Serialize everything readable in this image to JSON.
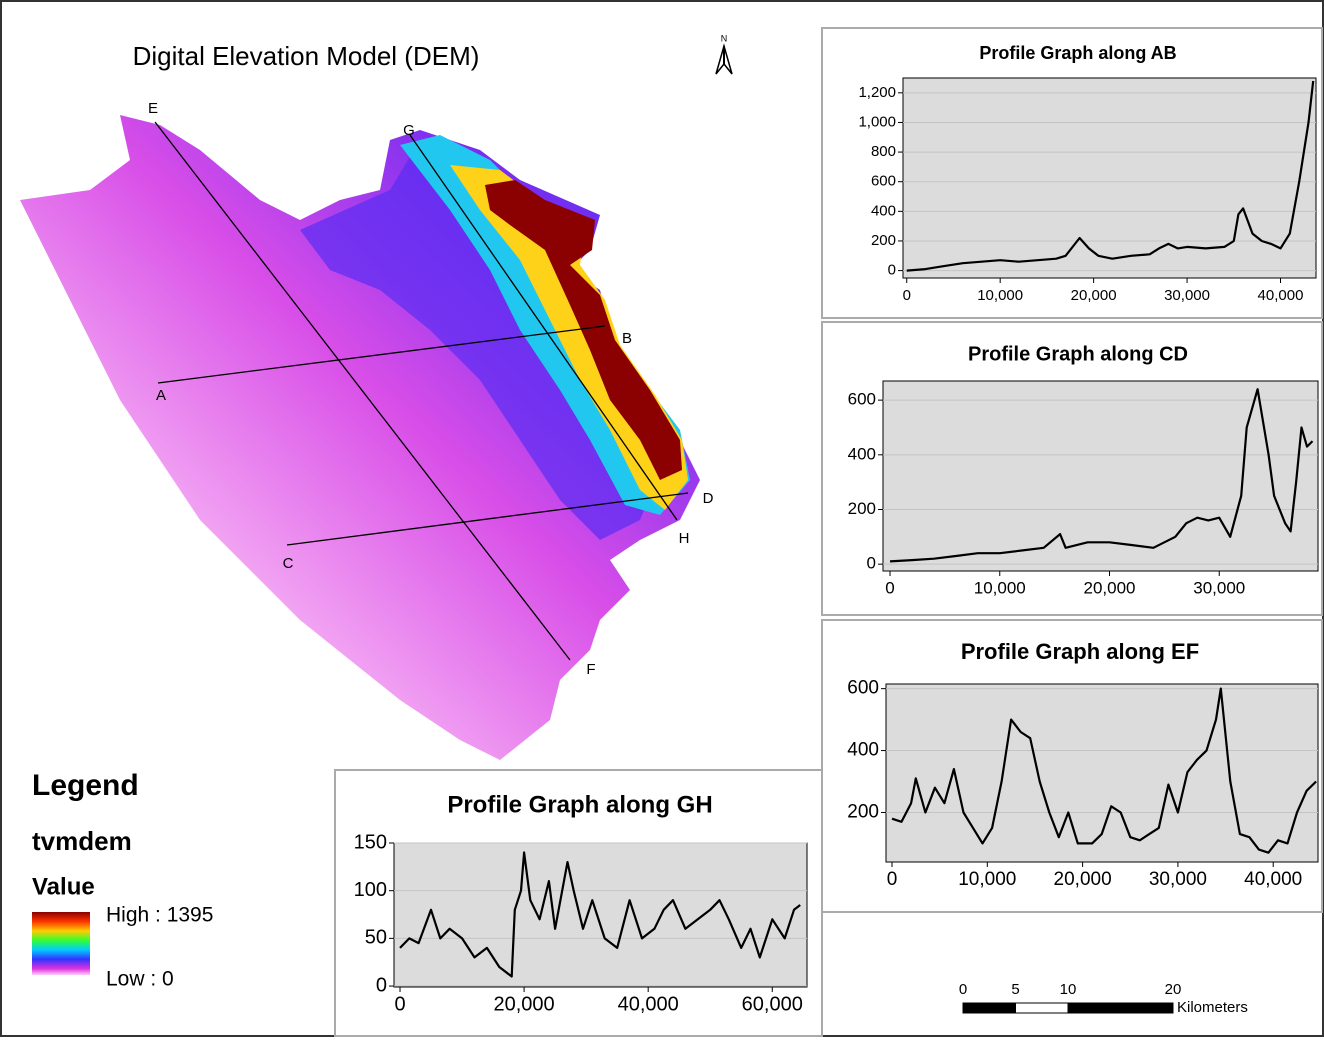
{
  "map": {
    "title": "Digital Elevation Model (DEM)",
    "north_label": "N",
    "points": [
      "A",
      "B",
      "C",
      "D",
      "E",
      "F",
      "G",
      "H"
    ]
  },
  "legend": {
    "title": "Legend",
    "layer": "tvmdem",
    "field": "Value",
    "high_label": "High : 1395",
    "low_label": "Low : 0"
  },
  "scale_bar": {
    "ticks": [
      0,
      5,
      10,
      20
    ],
    "unit": "Kilometers"
  },
  "chart_data": [
    {
      "type": "line",
      "title": "Profile Graph along AB",
      "color": "#000000",
      "plot_background": "#dcdcdc",
      "grid": true,
      "x": [
        0,
        2000,
        4000,
        6000,
        8000,
        10000,
        12000,
        14000,
        16000,
        17000,
        18500,
        19500,
        20500,
        22000,
        24000,
        26000,
        27000,
        28000,
        29000,
        30000,
        32000,
        34000,
        35000,
        35500,
        36000,
        37000,
        38000,
        39000,
        40000,
        41000,
        42000,
        43000,
        43500
      ],
      "values": [
        0,
        10,
        30,
        50,
        60,
        70,
        60,
        70,
        80,
        100,
        220,
        150,
        100,
        80,
        100,
        110,
        150,
        180,
        150,
        160,
        150,
        160,
        200,
        380,
        420,
        250,
        200,
        180,
        150,
        250,
        600,
        1000,
        1280
      ],
      "xlim": [
        -400,
        43800
      ],
      "ylim": [
        -50,
        1300
      ],
      "xticks": [
        0,
        {
          "value": 10000,
          "label": "10,000"
        },
        {
          "value": 20000,
          "label": "20,000"
        },
        {
          "value": 30000,
          "label": "30,000"
        },
        {
          "value": 40000,
          "label": "40,000"
        }
      ],
      "yticks": [
        0,
        200,
        400,
        600,
        800,
        {
          "value": 1000,
          "label": "1,000"
        },
        {
          "value": 1200,
          "label": "1,200"
        }
      ]
    },
    {
      "type": "line",
      "title": "Profile Graph along CD",
      "color": "#000000",
      "plot_background": "#dcdcdc",
      "grid": true,
      "x": [
        0,
        2000,
        4000,
        6000,
        8000,
        10000,
        12000,
        14000,
        15500,
        16000,
        18000,
        20000,
        22000,
        24000,
        26000,
        27000,
        28000,
        29000,
        30000,
        31000,
        32000,
        32500,
        33500,
        34500,
        35000,
        35500,
        36000,
        36500,
        37000,
        37500,
        38000,
        38500
      ],
      "values": [
        10,
        15,
        20,
        30,
        40,
        40,
        50,
        60,
        110,
        60,
        80,
        80,
        70,
        60,
        100,
        150,
        170,
        160,
        170,
        100,
        250,
        500,
        640,
        400,
        250,
        200,
        150,
        120,
        300,
        500,
        430,
        450
      ],
      "xlim": [
        -640,
        39000
      ],
      "ylim": [
        -25,
        670
      ],
      "xticks": [
        0,
        {
          "value": 10000,
          "label": "10,000"
        },
        {
          "value": 20000,
          "label": "20,000"
        },
        {
          "value": 30000,
          "label": "30,000"
        }
      ],
      "yticks": [
        0,
        200,
        400,
        600
      ]
    },
    {
      "type": "line",
      "title": "Profile Graph along EF",
      "color": "#000000",
      "plot_background": "#dcdcdc",
      "grid": true,
      "x": [
        0,
        1000,
        2000,
        2500,
        3500,
        4500,
        5500,
        6500,
        7500,
        8500,
        9500,
        10500,
        11500,
        12500,
        13500,
        14500,
        15500,
        16500,
        17500,
        18500,
        19500,
        21000,
        22000,
        23000,
        24000,
        25000,
        26000,
        27000,
        28000,
        29000,
        30000,
        31000,
        32000,
        33000,
        34000,
        34500,
        35500,
        36500,
        37500,
        38500,
        39500,
        40500,
        41500,
        42500,
        43500,
        44500
      ],
      "values": [
        180,
        170,
        230,
        310,
        200,
        280,
        230,
        340,
        200,
        150,
        100,
        150,
        300,
        500,
        460,
        440,
        300,
        200,
        120,
        200,
        100,
        100,
        130,
        220,
        200,
        120,
        110,
        130,
        150,
        290,
        200,
        330,
        370,
        400,
        500,
        600,
        300,
        130,
        120,
        80,
        70,
        110,
        100,
        200,
        270,
        300
      ],
      "xlim": [
        -630,
        44700
      ],
      "ylim": [
        40,
        615
      ],
      "xticks": [
        0,
        {
          "value": 10000,
          "label": "10,000"
        },
        {
          "value": 20000,
          "label": "20,000"
        },
        {
          "value": 30000,
          "label": "30,000"
        },
        {
          "value": 40000,
          "label": "40,000"
        }
      ],
      "yticks": [
        200,
        400,
        600
      ]
    },
    {
      "type": "line",
      "title": "Profile Graph along GH",
      "color": "#000000",
      "plot_background": "#dcdcdc",
      "grid": true,
      "x": [
        0,
        1500,
        3000,
        5000,
        6500,
        8000,
        10000,
        12000,
        14000,
        16000,
        18000,
        18500,
        19500,
        20000,
        21000,
        22500,
        24000,
        25000,
        27000,
        28000,
        29500,
        31000,
        33000,
        35000,
        37000,
        39000,
        41000,
        42500,
        44000,
        46000,
        48000,
        50000,
        51500,
        53000,
        55000,
        56500,
        58000,
        60000,
        62000,
        63500,
        64500
      ],
      "values": [
        40,
        50,
        45,
        80,
        50,
        60,
        50,
        30,
        40,
        20,
        10,
        80,
        100,
        140,
        90,
        70,
        110,
        60,
        130,
        100,
        60,
        90,
        50,
        40,
        90,
        50,
        60,
        80,
        90,
        60,
        70,
        80,
        90,
        70,
        40,
        60,
        30,
        70,
        50,
        80,
        85
      ],
      "xlim": [
        -970,
        65600
      ],
      "ylim": [
        -1,
        150
      ],
      "xticks": [
        0,
        {
          "value": 20000,
          "label": "20,000"
        },
        {
          "value": 40000,
          "label": "40,000"
        },
        {
          "value": 60000,
          "label": "60,000"
        }
      ],
      "yticks": [
        0,
        50,
        100,
        150
      ]
    }
  ]
}
